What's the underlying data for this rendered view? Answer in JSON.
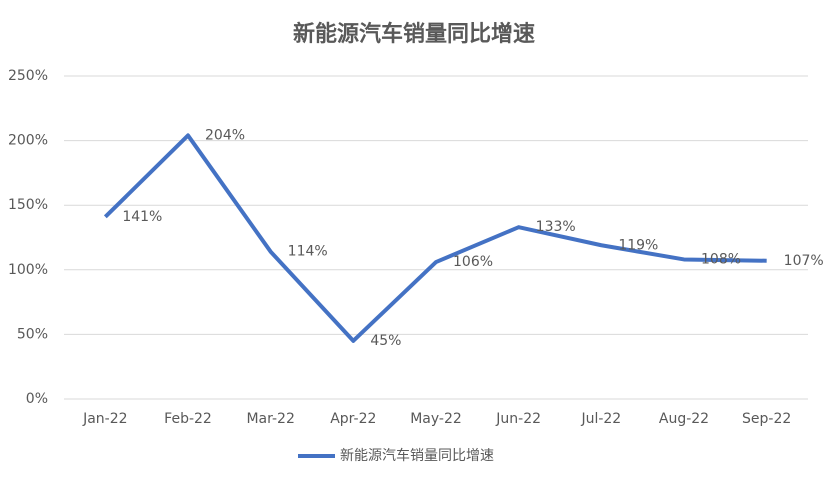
{
  "chart_data": {
    "type": "line",
    "title": "新能源汽车销量同比增速",
    "categories": [
      "Jan-22",
      "Feb-22",
      "Mar-22",
      "Apr-22",
      "May-22",
      "Jun-22",
      "Jul-22",
      "Aug-22",
      "Sep-22"
    ],
    "series": [
      {
        "name": "新能源汽车销量同比增速",
        "color": "#4472c4",
        "values": [
          141,
          204,
          114,
          45,
          106,
          133,
          119,
          108,
          107
        ],
        "value_labels": [
          "141%",
          "204%",
          "114%",
          "45%",
          "106%",
          "133%",
          "119%",
          "108%",
          "107%"
        ]
      }
    ],
    "ylim": [
      0,
      250
    ],
    "yticks": [
      {
        "value": 0,
        "label": "0%"
      },
      {
        "value": 50,
        "label": "50%"
      },
      {
        "value": 100,
        "label": "100%"
      },
      {
        "value": 150,
        "label": "150%"
      },
      {
        "value": 200,
        "label": "200%"
      },
      {
        "value": 250,
        "label": "250%"
      }
    ],
    "grid": true,
    "legend": "bottom"
  }
}
